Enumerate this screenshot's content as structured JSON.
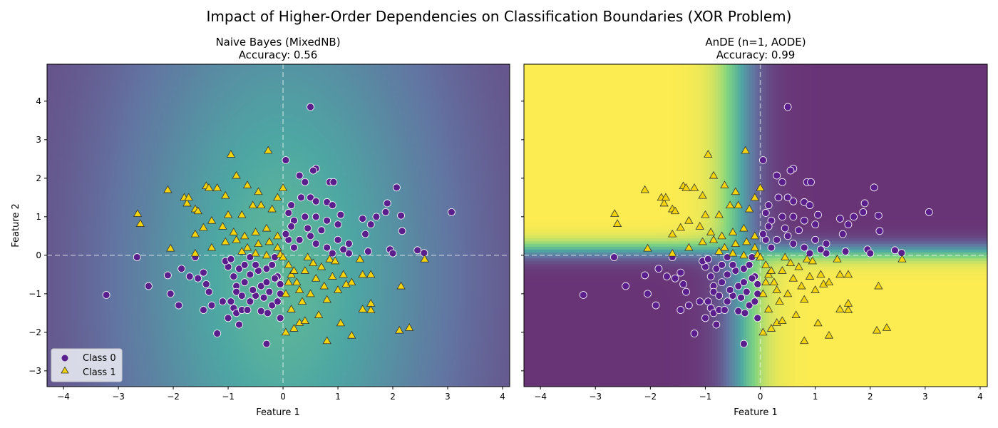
{
  "figure_title": "Impact of Higher-Order Dependencies on Classification Boundaries (XOR Problem)",
  "colors": {
    "class0": "#5a1f8c",
    "class1": "#f5d40c",
    "colormap": "viridis"
  },
  "chart_data": [
    {
      "type": "scatter",
      "title": "Naive Bayes (MixedNB)",
      "subtitle": "Accuracy: 0.56",
      "xlabel": "Feature 1",
      "ylabel": "Feature 2",
      "xlim": [
        -4.3,
        4.13
      ],
      "ylim": [
        -3.41,
        4.96
      ],
      "xticks": [
        "−4",
        "−3",
        "−2",
        "−1",
        "0",
        "1",
        "2",
        "3",
        "4"
      ],
      "yticks": [
        "−3",
        "−2",
        "−1",
        "0",
        "1",
        "2",
        "3",
        "4"
      ],
      "legend": {
        "placement": "lower-left",
        "entries": [
          "Class 0",
          "Class 1"
        ]
      },
      "background": "decision-probability surface (viridis), highest near x=0, fading to purple at the left/right edges",
      "reference_lines": {
        "x": 0,
        "y": 0
      }
    },
    {
      "type": "scatter",
      "title": "AnDE (n=1, AODE)",
      "subtitle": "Accuracy: 0.99",
      "xlabel": "Feature 1",
      "ylabel": "",
      "xlim": [
        -4.3,
        4.13
      ],
      "ylim": [
        -3.41,
        4.96
      ],
      "xticks": [
        "−4",
        "−3",
        "−2",
        "−1",
        "0",
        "1",
        "2",
        "3",
        "4"
      ],
      "background": "XOR-shaped decision surface: yellow for x<0,y>0 and x>0,y<0; purple elsewhere",
      "reference_lines": {
        "x": 0,
        "y": 0
      }
    }
  ],
  "points": {
    "class0": [
      [
        3.07,
        1.12
      ],
      [
        0.5,
        3.85
      ],
      [
        -3.22,
        -1.03
      ],
      [
        -2.66,
        -0.05
      ],
      [
        2.45,
        0.13
      ],
      [
        2.57,
        0.06
      ],
      [
        2.07,
        1.76
      ],
      [
        2.15,
        1.03
      ],
      [
        2.17,
        0.63
      ],
      [
        1.87,
        1.12
      ],
      [
        1.9,
        1.35
      ],
      [
        1.7,
        1.0
      ],
      [
        1.6,
        0.8
      ],
      [
        1.45,
        0.95
      ],
      [
        1.5,
        0.55
      ],
      [
        1.2,
        0.05
      ],
      [
        0.05,
        2.47
      ],
      [
        0.3,
        2.07
      ],
      [
        0.6,
        2.25
      ],
      [
        0.85,
        1.9
      ],
      [
        0.92,
        1.9
      ],
      [
        0.55,
        2.2
      ],
      [
        0.4,
        1.9
      ],
      [
        0.33,
        1.5
      ],
      [
        0.5,
        1.5
      ],
      [
        0.6,
        1.4
      ],
      [
        0.8,
        1.38
      ],
      [
        0.9,
        1.3
      ],
      [
        0.15,
        1.3
      ],
      [
        0.1,
        1.1
      ],
      [
        0.2,
        0.9
      ],
      [
        0.4,
        1.0
      ],
      [
        0.6,
        1.0
      ],
      [
        0.8,
        0.9
      ],
      [
        1.0,
        0.8
      ],
      [
        1.05,
        1.05
      ],
      [
        0.7,
        0.65
      ],
      [
        0.5,
        0.5
      ],
      [
        0.3,
        0.4
      ],
      [
        0.1,
        0.4
      ],
      [
        0.2,
        0.2
      ],
      [
        0.6,
        0.3
      ],
      [
        0.8,
        0.2
      ],
      [
        1.0,
        0.4
      ],
      [
        1.1,
        0.15
      ],
      [
        0.9,
        0.05
      ],
      [
        0.05,
        0.55
      ],
      [
        0.15,
        0.75
      ],
      [
        0.45,
        0.7
      ],
      [
        1.2,
        0.3
      ],
      [
        1.95,
        0.15
      ],
      [
        2.0,
        0.05
      ],
      [
        1.55,
        0.1
      ],
      [
        -2.45,
        -0.8
      ],
      [
        -2.1,
        -0.52
      ],
      [
        -2.05,
        -1.0
      ],
      [
        -1.9,
        -1.3
      ],
      [
        -1.85,
        -0.35
      ],
      [
        -1.7,
        -0.55
      ],
      [
        -1.6,
        -0.05
      ],
      [
        -1.55,
        -0.6
      ],
      [
        -1.45,
        -0.45
      ],
      [
        -1.4,
        -0.75
      ],
      [
        -1.35,
        -0.95
      ],
      [
        -1.45,
        -1.42
      ],
      [
        -1.3,
        -1.3
      ],
      [
        -1.2,
        -2.03
      ],
      [
        -1.1,
        -1.2
      ],
      [
        -1.0,
        -1.63
      ],
      [
        -0.95,
        -1.2
      ],
      [
        -0.9,
        -1.37
      ],
      [
        -0.85,
        -1.5
      ],
      [
        -0.8,
        -1.8
      ],
      [
        -0.75,
        -1.42
      ],
      [
        -0.65,
        -1.42
      ],
      [
        -0.6,
        -1.2
      ],
      [
        -0.5,
        -1.05
      ],
      [
        -0.4,
        -1.45
      ],
      [
        -0.3,
        -2.3
      ],
      [
        -0.28,
        -1.5
      ],
      [
        -0.2,
        -1.3
      ],
      [
        -0.1,
        -1.2
      ],
      [
        -0.05,
        -1.63
      ],
      [
        -0.25,
        -0.95
      ],
      [
        -0.4,
        -0.8
      ],
      [
        -0.55,
        -0.9
      ],
      [
        -0.7,
        -0.7
      ],
      [
        -0.85,
        -0.8
      ],
      [
        -0.9,
        -0.55
      ],
      [
        -1.0,
        -0.3
      ],
      [
        -1.05,
        -0.15
      ],
      [
        -0.95,
        -0.1
      ],
      [
        -0.8,
        -0.35
      ],
      [
        -0.7,
        -0.25
      ],
      [
        -0.6,
        -0.5
      ],
      [
        -0.45,
        -0.4
      ],
      [
        -0.3,
        -0.35
      ],
      [
        -0.2,
        -0.25
      ],
      [
        -0.1,
        -0.55
      ],
      [
        -0.05,
        -0.75
      ],
      [
        -0.15,
        -0.6
      ],
      [
        -0.3,
        -0.7
      ],
      [
        -0.5,
        -0.25
      ],
      [
        -0.6,
        -0.05
      ],
      [
        -0.15,
        -0.05
      ],
      [
        -0.85,
        -0.95
      ],
      [
        -0.75,
        -1.05
      ],
      [
        -0.35,
        -1.1
      ],
      [
        -0.05,
        -1.0
      ]
    ],
    "class1": [
      [
        -2.65,
        1.08
      ],
      [
        -2.6,
        0.82
      ],
      [
        -2.1,
        1.7
      ],
      [
        -2.05,
        0.18
      ],
      [
        -1.8,
        1.5
      ],
      [
        -1.75,
        1.35
      ],
      [
        -1.72,
        1.5
      ],
      [
        -1.6,
        1.2
      ],
      [
        -1.55,
        1.15
      ],
      [
        -1.4,
        1.8
      ],
      [
        -1.35,
        1.75
      ],
      [
        -1.2,
        1.75
      ],
      [
        -1.05,
        1.55
      ],
      [
        -0.95,
        2.62
      ],
      [
        -0.85,
        2.07
      ],
      [
        -0.65,
        1.82
      ],
      [
        -0.45,
        1.65
      ],
      [
        -0.27,
        2.72
      ],
      [
        -0.1,
        1.5
      ],
      [
        0.0,
        1.75
      ],
      [
        -0.4,
        1.3
      ],
      [
        -0.55,
        1.3
      ],
      [
        -0.2,
        1.2
      ],
      [
        -0.75,
        1.05
      ],
      [
        -1.0,
        1.05
      ],
      [
        -1.3,
        0.9
      ],
      [
        -1.45,
        0.72
      ],
      [
        -1.6,
        0.55
      ],
      [
        -1.1,
        0.75
      ],
      [
        -0.9,
        0.6
      ],
      [
        -0.7,
        0.5
      ],
      [
        -0.5,
        0.6
      ],
      [
        -0.3,
        0.7
      ],
      [
        -0.1,
        0.5
      ],
      [
        -1.05,
        0.35
      ],
      [
        -0.85,
        0.4
      ],
      [
        -0.65,
        0.2
      ],
      [
        -0.45,
        0.3
      ],
      [
        -0.25,
        0.35
      ],
      [
        -0.1,
        0.2
      ],
      [
        -1.6,
        0.05
      ],
      [
        -1.3,
        0.2
      ],
      [
        -0.75,
        0.1
      ],
      [
        -0.5,
        0.05
      ],
      [
        -0.3,
        0.0
      ],
      [
        -0.05,
        0.02
      ],
      [
        0.0,
        -0.05
      ],
      [
        0.1,
        -0.25
      ],
      [
        0.15,
        -0.5
      ],
      [
        0.25,
        -0.7
      ],
      [
        0.3,
        -0.9
      ],
      [
        0.4,
        -0.4
      ],
      [
        0.55,
        -0.2
      ],
      [
        0.7,
        -0.3
      ],
      [
        0.85,
        -0.1
      ],
      [
        0.95,
        -0.15
      ],
      [
        0.6,
        -0.6
      ],
      [
        0.75,
        -0.8
      ],
      [
        0.9,
        -0.55
      ],
      [
        1.0,
        -0.9
      ],
      [
        0.5,
        -1.0
      ],
      [
        0.35,
        -1.2
      ],
      [
        0.15,
        -1.4
      ],
      [
        0.2,
        -1.9
      ],
      [
        0.05,
        -2.0
      ],
      [
        0.3,
        -1.75
      ],
      [
        0.4,
        -1.7
      ],
      [
        0.65,
        -1.55
      ],
      [
        0.8,
        -1.15
      ],
      [
        0.8,
        -2.22
      ],
      [
        1.05,
        -1.76
      ],
      [
        1.25,
        -2.08
      ],
      [
        1.1,
        -0.5
      ],
      [
        1.15,
        -0.75
      ],
      [
        1.25,
        -0.7
      ],
      [
        1.45,
        -0.5
      ],
      [
        1.6,
        -0.5
      ],
      [
        1.45,
        -1.4
      ],
      [
        1.6,
        -1.25
      ],
      [
        1.6,
        -1.42
      ],
      [
        2.15,
        -0.8
      ],
      [
        2.12,
        -1.95
      ],
      [
        2.3,
        -1.88
      ],
      [
        2.58,
        -0.1
      ],
      [
        1.4,
        -0.1
      ],
      [
        0.05,
        -1.0
      ],
      [
        0.1,
        -0.7
      ],
      [
        0.2,
        -0.4
      ],
      [
        0.45,
        -0.05
      ]
    ]
  }
}
